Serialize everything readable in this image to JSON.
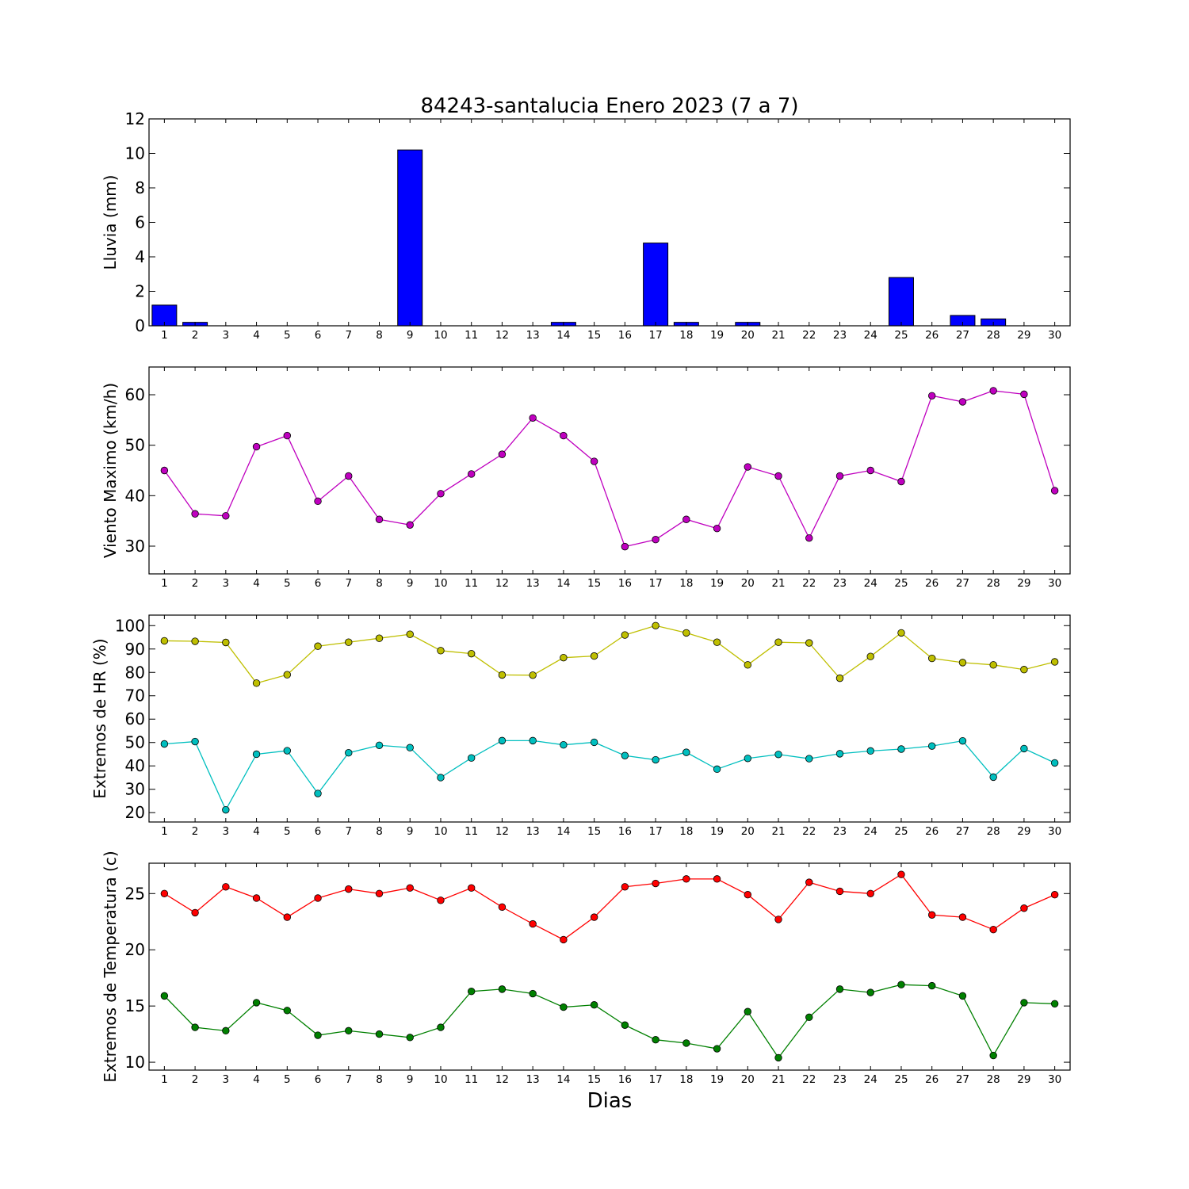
{
  "chart_data": [
    {
      "type": "bar",
      "title": "84243-santalucia Enero 2023  (7 a 7)",
      "ylabel": "Lluvia (mm)",
      "xlabel": "",
      "ylim": [
        0,
        12
      ],
      "yticks": [
        0,
        2,
        4,
        6,
        8,
        10,
        12
      ],
      "categories": [
        "1",
        "2",
        "3",
        "4",
        "5",
        "6",
        "7",
        "8",
        "9",
        "10",
        "11",
        "12",
        "13",
        "14",
        "15",
        "16",
        "17",
        "18",
        "19",
        "20",
        "21",
        "22",
        "23",
        "24",
        "25",
        "26",
        "27",
        "28",
        "29",
        "30"
      ],
      "series": [
        {
          "color": "#0000ff",
          "values": [
            1.2,
            0.2,
            0,
            0,
            0,
            0,
            0,
            0,
            10.2,
            0,
            0,
            0,
            0,
            0.2,
            0,
            0,
            4.8,
            0.2,
            0,
            0.2,
            0,
            0,
            0,
            0,
            2.8,
            0,
            0.6,
            0.4,
            0,
            0
          ]
        }
      ]
    },
    {
      "type": "line",
      "ylabel": "Viento Maximo (km/h)",
      "xlabel": "",
      "ylim": [
        24.5,
        65.5
      ],
      "yticks": [
        30,
        40,
        50,
        60
      ],
      "categories": [
        "1",
        "2",
        "3",
        "4",
        "5",
        "6",
        "7",
        "8",
        "9",
        "10",
        "11",
        "12",
        "13",
        "14",
        "15",
        "16",
        "17",
        "18",
        "19",
        "20",
        "21",
        "22",
        "23",
        "24",
        "25",
        "26",
        "27",
        "28",
        "29",
        "30"
      ],
      "series": [
        {
          "color": "#bf00bf",
          "values": [
            45.0,
            36.4,
            36.0,
            49.7,
            51.9,
            38.9,
            43.9,
            35.3,
            34.2,
            40.4,
            44.3,
            48.2,
            55.4,
            51.9,
            46.8,
            29.9,
            31.3,
            35.3,
            33.5,
            45.7,
            43.9,
            31.6,
            43.9,
            45.0,
            42.8,
            59.8,
            58.6,
            60.8,
            60.1,
            41.0
          ]
        }
      ]
    },
    {
      "type": "line",
      "ylabel": "Extremos de HR (%)",
      "xlabel": "",
      "ylim": [
        16,
        104.5
      ],
      "yticks": [
        20,
        30,
        40,
        50,
        60,
        70,
        80,
        90,
        100
      ],
      "categories": [
        "1",
        "2",
        "3",
        "4",
        "5",
        "6",
        "7",
        "8",
        "9",
        "10",
        "11",
        "12",
        "13",
        "14",
        "15",
        "16",
        "17",
        "18",
        "19",
        "20",
        "21",
        "22",
        "23",
        "24",
        "25",
        "26",
        "27",
        "28",
        "29",
        "30"
      ],
      "series": [
        {
          "color": "#bfbf00",
          "values": [
            93.5,
            93.3,
            92.8,
            75.4,
            79.0,
            91.2,
            92.9,
            94.6,
            96.3,
            89.3,
            88.0,
            78.9,
            78.8,
            86.3,
            87.0,
            96.0,
            100.0,
            96.9,
            92.9,
            83.2,
            92.9,
            92.6,
            77.5,
            86.8,
            96.9,
            86.0,
            84.2,
            83.2,
            81.2,
            84.5
          ]
        },
        {
          "color": "#00bfbf",
          "values": [
            49.4,
            50.4,
            21.2,
            45.0,
            46.5,
            28.2,
            45.6,
            48.8,
            47.8,
            35.0,
            43.4,
            50.8,
            50.8,
            49.0,
            50.1,
            44.4,
            42.6,
            45.8,
            38.6,
            43.2,
            44.9,
            43.1,
            45.2,
            46.4,
            47.2,
            48.5,
            50.7,
            35.2,
            47.4,
            41.3
          ]
        }
      ]
    },
    {
      "type": "line",
      "ylabel": "Extremos de Temperatura (c)",
      "xlabel": "Dias",
      "ylim": [
        9.3,
        27.7
      ],
      "yticks": [
        10,
        15,
        20,
        25
      ],
      "categories": [
        "1",
        "2",
        "3",
        "4",
        "5",
        "6",
        "7",
        "8",
        "9",
        "10",
        "11",
        "12",
        "13",
        "14",
        "15",
        "16",
        "17",
        "18",
        "19",
        "20",
        "21",
        "22",
        "23",
        "24",
        "25",
        "26",
        "27",
        "28",
        "29",
        "30"
      ],
      "series": [
        {
          "color": "#ff0000",
          "values": [
            25.0,
            23.3,
            25.6,
            24.6,
            22.9,
            24.6,
            25.4,
            25.0,
            25.5,
            24.4,
            25.5,
            23.8,
            22.3,
            20.9,
            22.9,
            25.6,
            25.9,
            26.3,
            26.3,
            24.9,
            22.7,
            26.0,
            25.2,
            25.0,
            26.7,
            23.1,
            22.9,
            21.8,
            23.7,
            24.9
          ]
        },
        {
          "color": "#008000",
          "values": [
            15.9,
            13.1,
            12.8,
            15.3,
            14.6,
            12.4,
            12.8,
            12.5,
            12.2,
            13.1,
            16.3,
            16.5,
            16.1,
            14.9,
            15.1,
            13.3,
            12.0,
            11.7,
            11.2,
            14.5,
            10.4,
            14.0,
            16.5,
            16.2,
            16.9,
            16.8,
            15.9,
            10.6,
            15.3,
            15.2
          ]
        }
      ]
    }
  ]
}
